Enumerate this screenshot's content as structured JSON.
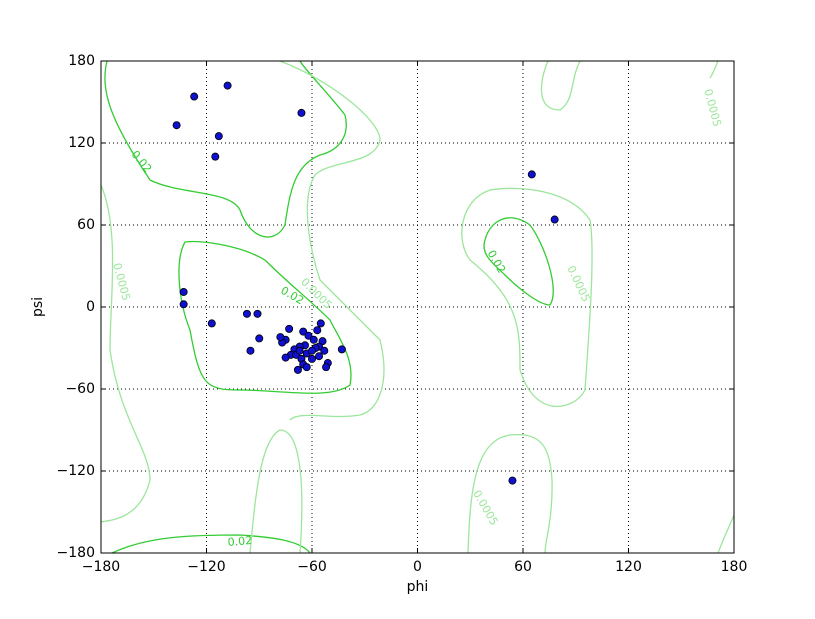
{
  "chart_data": {
    "type": "scatter",
    "xlabel": "phi",
    "ylabel": "psi",
    "x": [
      -108,
      -127,
      -137,
      -113,
      -115,
      -66,
      65,
      78,
      -133,
      -133,
      -117,
      -97,
      -91,
      -90,
      -95,
      54,
      -43,
      -73,
      -55,
      -75,
      -77,
      -65,
      -62,
      -57,
      -59,
      -54,
      -56,
      -53,
      -64,
      -67,
      -70,
      -72,
      -75,
      -69,
      -66,
      -63,
      -60,
      -56,
      -51,
      -52,
      -65,
      -63,
      -68,
      -58,
      -67,
      -78,
      -60
    ],
    "y": [
      162,
      154,
      133,
      125,
      110,
      142,
      97,
      64,
      11,
      2,
      -12,
      -5,
      -5,
      -23,
      -32,
      -127,
      -31,
      -16,
      -12,
      -24,
      -26,
      -18,
      -21,
      -17,
      -24,
      -25,
      -29,
      -32,
      -28,
      -29,
      -31,
      -35,
      -37,
      -35,
      -38,
      -34,
      -38,
      -36,
      -41,
      -44,
      -42,
      -44,
      -46,
      -30,
      -32,
      -22,
      -32
    ],
    "color": "#1010d0",
    "xlim": [
      -180,
      180
    ],
    "ylim": [
      -180,
      180
    ],
    "xticks": [
      {
        "value": -180,
        "label": "−180"
      },
      {
        "value": -120,
        "label": "−120"
      },
      {
        "value": -60,
        "label": "−60"
      },
      0,
      60,
      120,
      180
    ],
    "yticks": [
      {
        "value": -180,
        "label": "−180"
      },
      {
        "value": -120,
        "label": "−120"
      },
      {
        "value": -60,
        "label": "−60"
      },
      0,
      60,
      120,
      180
    ],
    "grid": true,
    "contours": [
      {
        "level": 0.02,
        "color": "#33cc33"
      },
      {
        "level": 0.0005,
        "color": "#9be69b"
      }
    ]
  }
}
